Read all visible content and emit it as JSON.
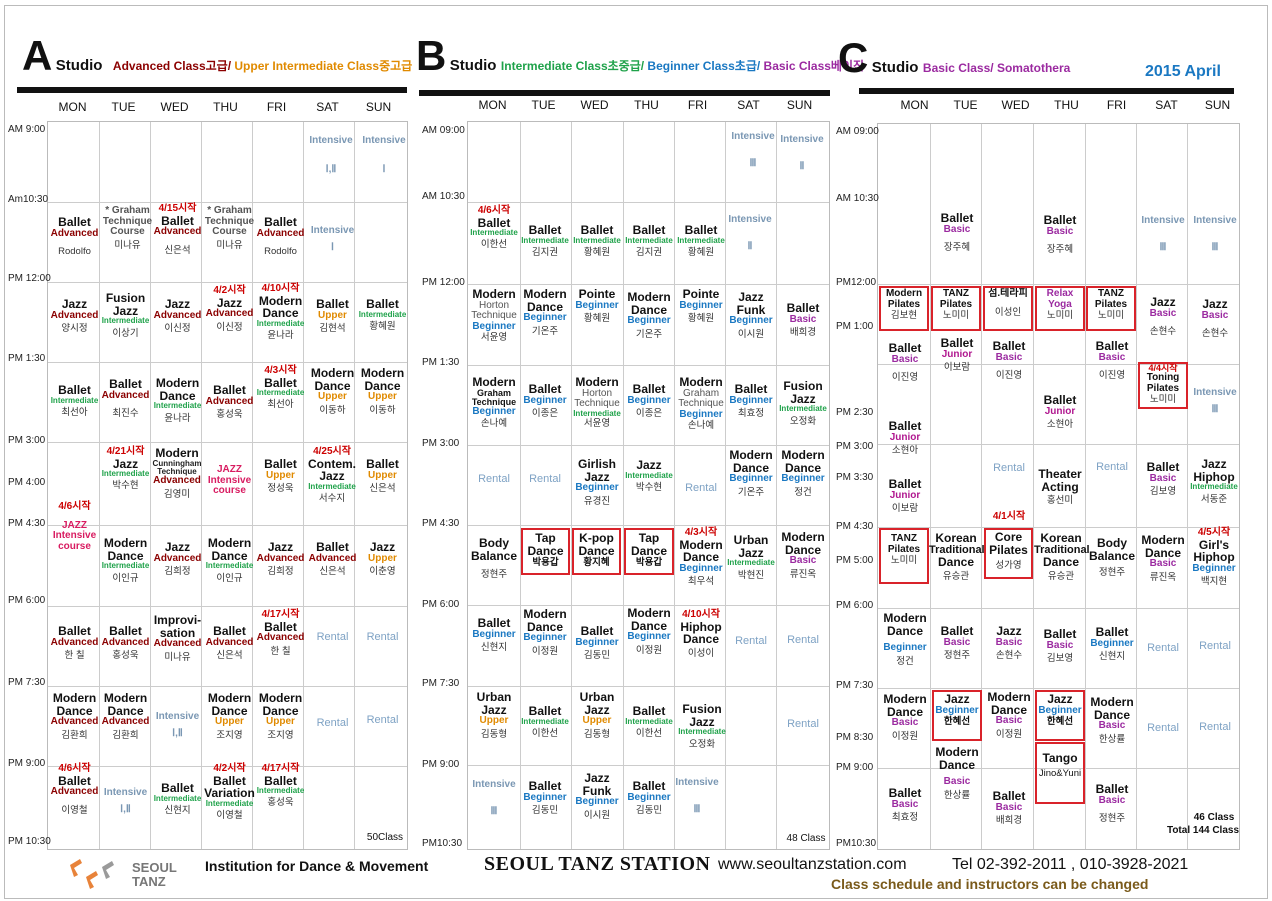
{
  "colors": {
    "advanced": "#8b0000",
    "intermediate": "#1fa24a",
    "upper": "#e08a00",
    "beginner": "#1a78c2",
    "basic": "#9b2aa0",
    "rental": "#7ea2c4",
    "notice": "#c00000",
    "highlight": "#d9232a"
  },
  "days": [
    "MON",
    "TUE",
    "WED",
    "THU",
    "FRI",
    "SAT",
    "SUN"
  ],
  "studio_a": {
    "letter": "A",
    "word": "Studio",
    "sub1": "Advanced Class고급/",
    "sub2": " Upper Intermediate Class중고급",
    "times": [
      "AM 9:00",
      "Am10:30",
      "PM 12:00",
      "PM 1:30",
      "PM 3:00",
      "PM 4:00",
      "PM 4:30",
      "PM 6:00",
      "PM 7:30",
      "PM 9:00",
      "PM 10:30"
    ],
    "total": "50Class"
  },
  "studio_b": {
    "letter": "B",
    "word": "Studio",
    "sub1": "Intermediate Class초중급/",
    "sub2": " Beginner Class초급/",
    "sub3": " Basic Class베이직",
    "times": [
      "AM 09:00",
      "AM 10:30",
      "PM 12:00",
      "PM 1:30",
      "PM 3:00",
      "PM 4:30",
      "PM 6:00",
      "PM 7:30",
      "PM 9:00",
      "PM10:30"
    ],
    "total": "48 Class"
  },
  "studio_c": {
    "letter": "C",
    "word": "Studio",
    "sub1": "Basic Class/ Somatothera",
    "month": "2015 April",
    "times": [
      "AM 09:00",
      "AM 10:30",
      "PM12:00",
      "PM 1:00",
      "PM 2:30",
      "PM 3:00",
      "PM 3:30",
      "PM 4:30",
      "PM 5:00",
      "PM 6:00",
      "PM 7:30",
      "PM 8:30",
      "PM 9:00",
      "PM10:30"
    ],
    "total1": "46 Class",
    "total2": "Total 144 Class"
  },
  "footer": {
    "logo1": "SEOUL",
    "logo2": "TANZ",
    "inst": "Institution for Dance & Movement",
    "brand": "SEOUL TANZ STATION",
    "url": "www.seoultanzstation.com",
    "tel": "Tel 02-392-2011 , 010-3928-2021",
    "note": "Class schedule and instructors can be changed"
  }
}
